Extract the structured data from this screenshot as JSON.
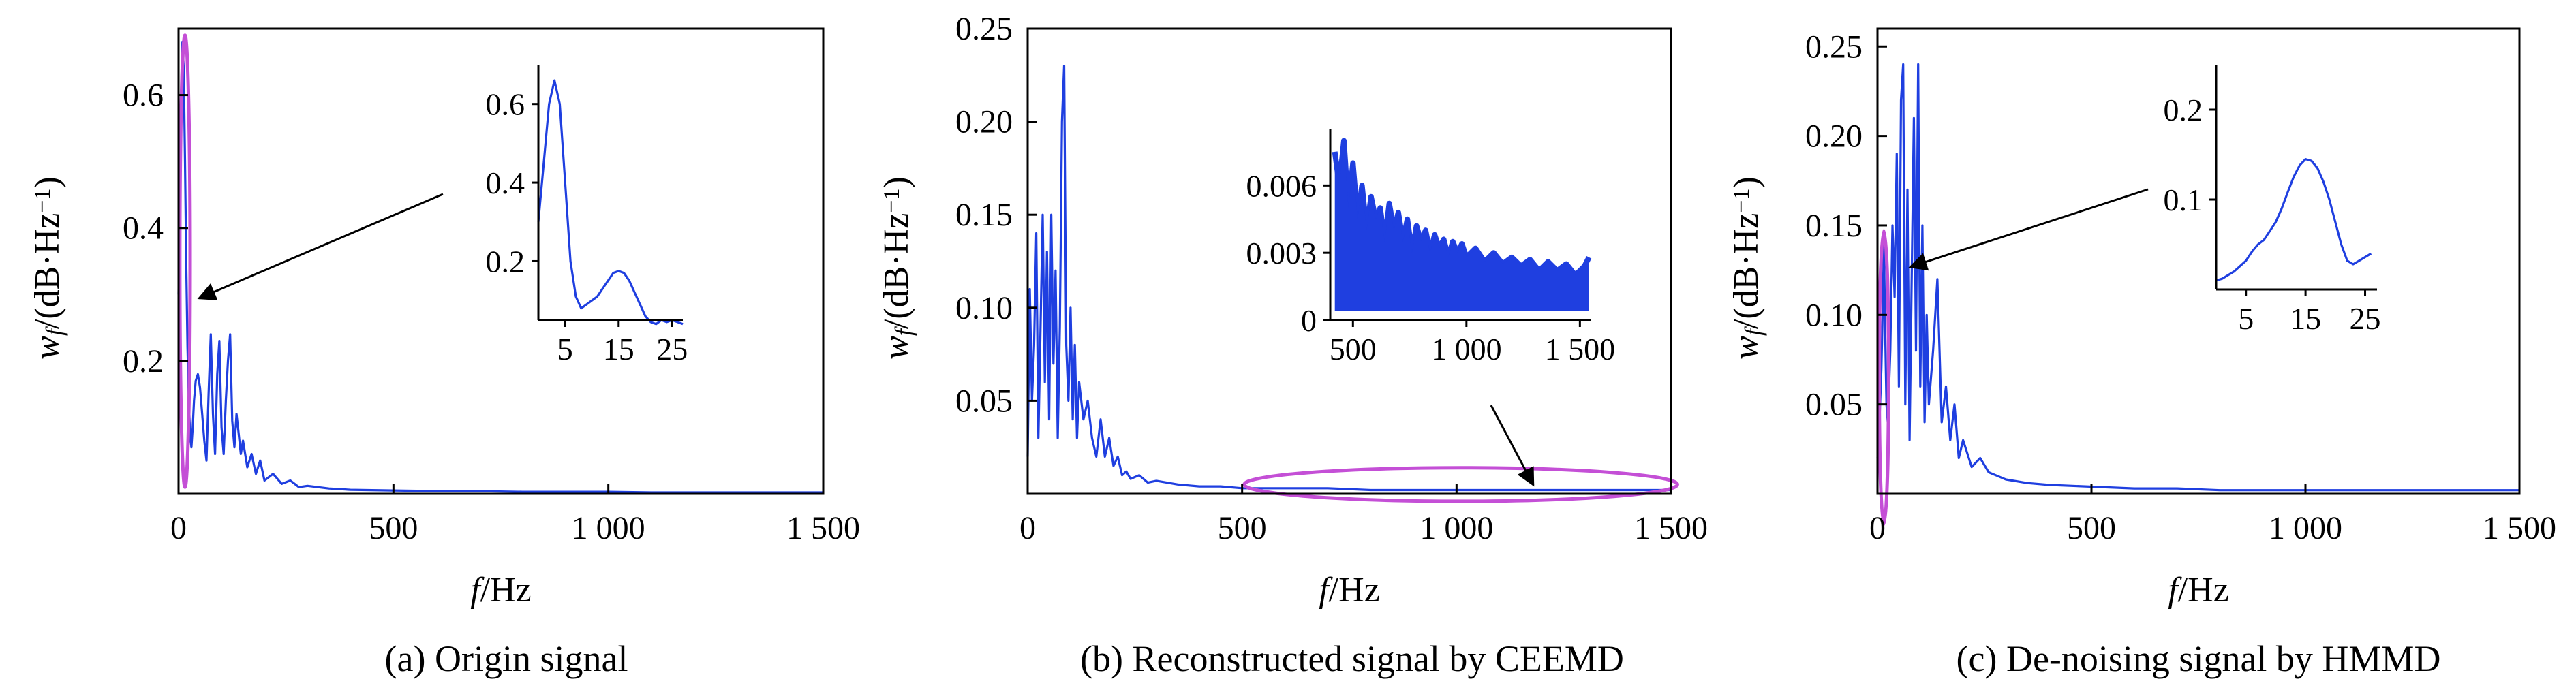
{
  "chart_data": [
    {
      "type": "line",
      "caption": "(a) Origin signal",
      "xlabel_italic": "f",
      "xlabel_unit": "/Hz",
      "ylabel_italic": "w",
      "ylabel_sub": "f",
      "ylabel_unit": "/(dB·Hz",
      "ylabel_sup": "−1",
      "ylabel_close": ")",
      "xlim": [
        0,
        1500
      ],
      "ylim": [
        0,
        0.7
      ],
      "xticks": [
        {
          "v": 0,
          "t": "0"
        },
        {
          "v": 500,
          "t": "500"
        },
        {
          "v": 1000,
          "t": "1 000"
        },
        {
          "v": 1500,
          "t": "1 500"
        }
      ],
      "yticks": [
        {
          "v": 0.2,
          "t": "0.2"
        },
        {
          "v": 0.4,
          "t": "0.4"
        },
        {
          "v": 0.6,
          "t": "0.6"
        }
      ],
      "series_color": "#1f3fe0",
      "highlight_color": "#c44fd6",
      "x": [
        0,
        3,
        6,
        9,
        12,
        15,
        18,
        21,
        24,
        27,
        30,
        33,
        36,
        40,
        45,
        50,
        55,
        60,
        65,
        70,
        75,
        80,
        85,
        90,
        95,
        100,
        105,
        110,
        115,
        120,
        125,
        130,
        135,
        140,
        145,
        150,
        160,
        170,
        180,
        190,
        200,
        220,
        240,
        260,
        280,
        300,
        350,
        400,
        500,
        600,
        700,
        800,
        900,
        1000,
        1100,
        1200,
        1300,
        1400,
        1500
      ],
      "y": [
        0.3,
        0.45,
        0.6,
        0.68,
        0.64,
        0.5,
        0.34,
        0.22,
        0.14,
        0.09,
        0.07,
        0.1,
        0.14,
        0.17,
        0.18,
        0.16,
        0.12,
        0.08,
        0.05,
        0.15,
        0.24,
        0.12,
        0.06,
        0.18,
        0.23,
        0.1,
        0.06,
        0.14,
        0.2,
        0.24,
        0.11,
        0.07,
        0.12,
        0.09,
        0.06,
        0.08,
        0.04,
        0.06,
        0.03,
        0.05,
        0.02,
        0.03,
        0.015,
        0.02,
        0.01,
        0.012,
        0.008,
        0.006,
        0.005,
        0.004,
        0.004,
        0.003,
        0.003,
        0.003,
        0.002,
        0.002,
        0.002,
        0.002,
        0.002
      ],
      "highlight_ellipse": {
        "cx": 15,
        "cy": 0.35,
        "rx": 12,
        "ry": 0.34
      },
      "inset": {
        "xlim": [
          0,
          27
        ],
        "ylim": [
          0.05,
          0.7
        ],
        "xticks": [
          {
            "v": 5,
            "t": "5"
          },
          {
            "v": 15,
            "t": "15"
          },
          {
            "v": 25,
            "t": "25"
          }
        ],
        "yticks": [
          {
            "v": 0.2,
            "t": "0.2"
          },
          {
            "v": 0.4,
            "t": "0.4"
          },
          {
            "v": 0.6,
            "t": "0.6"
          }
        ],
        "x": [
          0,
          1,
          2,
          3,
          4,
          5,
          6,
          7,
          8,
          9,
          10,
          11,
          12,
          13,
          14,
          15,
          16,
          17,
          18,
          19,
          20,
          21,
          22,
          23,
          24,
          25,
          26,
          27
        ],
        "y": [
          0.3,
          0.45,
          0.6,
          0.66,
          0.6,
          0.4,
          0.2,
          0.11,
          0.08,
          0.09,
          0.1,
          0.11,
          0.13,
          0.15,
          0.17,
          0.175,
          0.17,
          0.15,
          0.12,
          0.09,
          0.06,
          0.045,
          0.04,
          0.05,
          0.045,
          0.05,
          0.045,
          0.04
        ]
      }
    },
    {
      "type": "line",
      "caption": "(b) Reconstructed signal by CEEMD",
      "xlabel_italic": "f",
      "xlabel_unit": "/Hz",
      "ylabel_italic": "w",
      "ylabel_sub": "f",
      "ylabel_unit": "/(dB·Hz",
      "ylabel_sup": "−1",
      "ylabel_close": ")",
      "xlim": [
        0,
        1500
      ],
      "ylim": [
        0,
        0.25
      ],
      "xticks": [
        {
          "v": 0,
          "t": "0"
        },
        {
          "v": 500,
          "t": "500"
        },
        {
          "v": 1000,
          "t": "1 000"
        },
        {
          "v": 1500,
          "t": "1 500"
        }
      ],
      "yticks": [
        {
          "v": 0.05,
          "t": "0.05"
        },
        {
          "v": 0.1,
          "t": "0.10"
        },
        {
          "v": 0.15,
          "t": "0.15"
        },
        {
          "v": 0.2,
          "t": "0.20"
        },
        {
          "v": 0.25,
          "t": "0.25"
        }
      ],
      "series_color": "#1f3fe0",
      "highlight_color": "#c44fd6",
      "x": [
        0,
        5,
        10,
        15,
        20,
        25,
        30,
        35,
        40,
        45,
        50,
        55,
        60,
        65,
        70,
        75,
        80,
        85,
        90,
        95,
        100,
        105,
        110,
        115,
        120,
        130,
        140,
        150,
        160,
        170,
        180,
        190,
        200,
        210,
        220,
        230,
        240,
        260,
        280,
        300,
        350,
        400,
        450,
        500,
        600,
        700,
        800,
        900,
        1000,
        1100,
        1200,
        1300,
        1400,
        1500
      ],
      "y": [
        0.02,
        0.11,
        0.05,
        0.08,
        0.14,
        0.03,
        0.09,
        0.15,
        0.06,
        0.13,
        0.04,
        0.15,
        0.07,
        0.12,
        0.03,
        0.09,
        0.2,
        0.23,
        0.08,
        0.05,
        0.1,
        0.04,
        0.08,
        0.03,
        0.06,
        0.04,
        0.05,
        0.03,
        0.02,
        0.04,
        0.02,
        0.03,
        0.015,
        0.02,
        0.01,
        0.012,
        0.008,
        0.01,
        0.006,
        0.007,
        0.005,
        0.004,
        0.004,
        0.003,
        0.003,
        0.003,
        0.002,
        0.002,
        0.002,
        0.002,
        0.002,
        0.002,
        0.002,
        0.002
      ],
      "highlight_ellipse": {
        "cx": 1010,
        "cy": 0.005,
        "rx": 505,
        "ry": 0.009
      },
      "inset": {
        "xlim": [
          400,
          1550
        ],
        "ylim": [
          0,
          0.0085
        ],
        "xticks": [
          {
            "v": 500,
            "t": "500"
          },
          {
            "v": 1000,
            "t": "1 000"
          },
          {
            "v": 1500,
            "t": "1 500"
          }
        ],
        "yticks": [
          {
            "v": 0,
            "t": "0"
          },
          {
            "v": 0.003,
            "t": "0.003"
          },
          {
            "v": 0.006,
            "t": "0.006"
          }
        ],
        "x": [
          420,
          440,
          460,
          480,
          500,
          520,
          540,
          560,
          580,
          600,
          620,
          640,
          660,
          680,
          700,
          720,
          740,
          760,
          780,
          800,
          820,
          840,
          860,
          880,
          900,
          920,
          940,
          960,
          980,
          1000,
          1040,
          1080,
          1120,
          1160,
          1200,
          1240,
          1280,
          1320,
          1360,
          1400,
          1440,
          1480,
          1520,
          1540
        ],
        "y": [
          0.0075,
          0.006,
          0.008,
          0.005,
          0.007,
          0.0045,
          0.006,
          0.004,
          0.0055,
          0.0045,
          0.005,
          0.0035,
          0.0052,
          0.004,
          0.0048,
          0.0035,
          0.0045,
          0.003,
          0.0042,
          0.0035,
          0.004,
          0.003,
          0.0038,
          0.0032,
          0.0036,
          0.0028,
          0.0035,
          0.003,
          0.0034,
          0.0028,
          0.0032,
          0.0026,
          0.003,
          0.0025,
          0.0028,
          0.0024,
          0.0027,
          0.0022,
          0.0026,
          0.0022,
          0.0025,
          0.002,
          0.0024,
          0.0028
        ]
      }
    },
    {
      "type": "line",
      "caption": "(c) De-noising signal by HMMD",
      "xlabel_italic": "f",
      "xlabel_unit": "/Hz",
      "ylabel_italic": "w",
      "ylabel_sub": "f",
      "ylabel_unit": "/(dB·Hz",
      "ylabel_sup": "−1",
      "ylabel_close": ")",
      "xlim": [
        0,
        1500
      ],
      "ylim": [
        0,
        0.26
      ],
      "xticks": [
        {
          "v": 0,
          "t": "0"
        },
        {
          "v": 500,
          "t": "500"
        },
        {
          "v": 1000,
          "t": "1 000"
        },
        {
          "v": 1500,
          "t": "1 500"
        }
      ],
      "yticks": [
        {
          "v": 0.05,
          "t": "0.05"
        },
        {
          "v": 0.1,
          "t": "0.10"
        },
        {
          "v": 0.15,
          "t": "0.15"
        },
        {
          "v": 0.2,
          "t": "0.20"
        },
        {
          "v": 0.25,
          "t": "0.25"
        }
      ],
      "series_color": "#1f3fe0",
      "highlight_color": "#c44fd6",
      "x": [
        0,
        3,
        6,
        9,
        12,
        15,
        18,
        21,
        24,
        27,
        30,
        35,
        40,
        45,
        50,
        55,
        60,
        65,
        70,
        75,
        80,
        85,
        90,
        95,
        100,
        105,
        110,
        115,
        120,
        130,
        140,
        150,
        160,
        170,
        180,
        190,
        200,
        220,
        240,
        260,
        280,
        300,
        350,
        400,
        500,
        600,
        700,
        800,
        900,
        1000,
        1100,
        1200,
        1300,
        1400,
        1500
      ],
      "y": [
        0.02,
        0.03,
        0.05,
        0.07,
        0.1,
        0.14,
        0.09,
        0.05,
        0.04,
        0.06,
        0.08,
        0.15,
        0.11,
        0.19,
        0.06,
        0.22,
        0.24,
        0.05,
        0.17,
        0.03,
        0.12,
        0.21,
        0.08,
        0.24,
        0.06,
        0.15,
        0.04,
        0.1,
        0.05,
        0.08,
        0.12,
        0.04,
        0.06,
        0.03,
        0.05,
        0.02,
        0.03,
        0.015,
        0.02,
        0.012,
        0.01,
        0.008,
        0.006,
        0.005,
        0.004,
        0.003,
        0.003,
        0.002,
        0.002,
        0.002,
        0.002,
        0.002,
        0.002,
        0.002,
        0.002
      ],
      "highlight_ellipse": {
        "cx": 15,
        "cy": 0.065,
        "rx": 11,
        "ry": 0.082
      },
      "inset": {
        "xlim": [
          0,
          27
        ],
        "ylim": [
          0,
          0.25
        ],
        "xticks": [
          {
            "v": 5,
            "t": "5"
          },
          {
            "v": 15,
            "t": "15"
          },
          {
            "v": 25,
            "t": "25"
          }
        ],
        "yticks": [
          {
            "v": 0.1,
            "t": "0.1"
          },
          {
            "v": 0.2,
            "t": "0.2"
          }
        ],
        "x": [
          0,
          1,
          2,
          3,
          4,
          5,
          6,
          7,
          8,
          9,
          10,
          11,
          12,
          13,
          14,
          15,
          16,
          17,
          18,
          19,
          20,
          21,
          22,
          23,
          24,
          25,
          26
        ],
        "y": [
          0.01,
          0.012,
          0.016,
          0.02,
          0.026,
          0.032,
          0.042,
          0.05,
          0.055,
          0.065,
          0.075,
          0.09,
          0.108,
          0.125,
          0.138,
          0.145,
          0.143,
          0.135,
          0.12,
          0.1,
          0.075,
          0.05,
          0.032,
          0.028,
          0.032,
          0.036,
          0.04
        ]
      }
    }
  ]
}
